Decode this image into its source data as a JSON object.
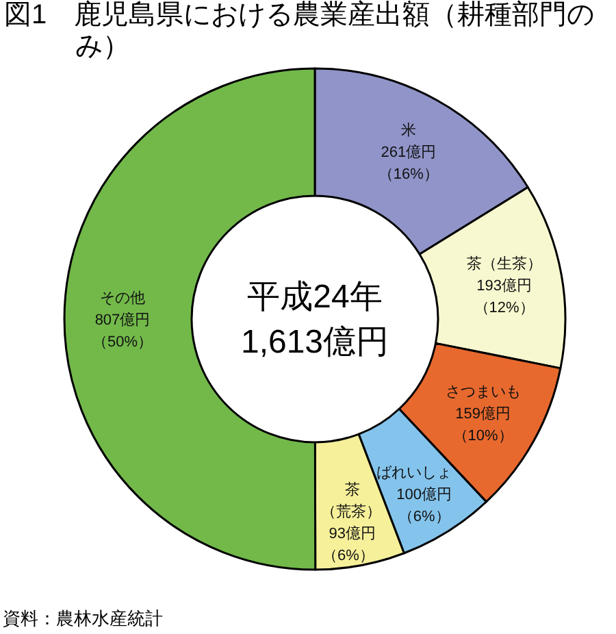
{
  "chart_data": {
    "type": "donut",
    "title": "図1　鹿児島県における農業産出額（耕種部門のみ）",
    "categories": [
      "米",
      "茶（生茶）",
      "さつまいも",
      "ばれいしょ",
      "茶（荒茶）",
      "その他"
    ],
    "values": [
      261,
      193,
      159,
      100,
      93,
      807
    ],
    "colors": [
      "#9094c8",
      "#f8f8d0",
      "#e8692e",
      "#84c4ec",
      "#f6f09a",
      "#72b94a"
    ],
    "value_labels": [
      "261億円（16%）",
      "193億円（12%）",
      "159億円（10%）",
      "100億円（6%）",
      "93億円（6%）",
      "807億円（50%）"
    ],
    "annotations": [
      "平成24年1,613億円",
      "資料：農林水産統計"
    ]
  }
}
